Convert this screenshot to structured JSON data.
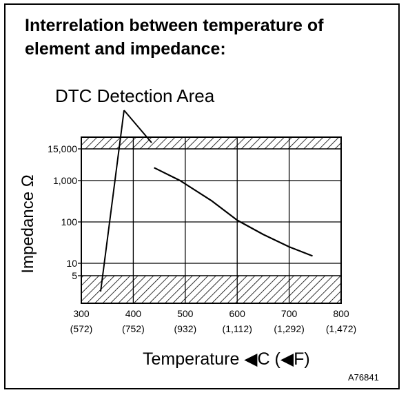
{
  "title_lines": [
    "Interrelation between temperature of",
    "element and impedance:"
  ],
  "annotation": "DTC Detection Area",
  "figure_id": "A76841",
  "chart_data": {
    "type": "line",
    "title": "Interrelation between temperature of element and impedance:",
    "xlabel": "Temperature ◀C (◀F)",
    "ylabel": "Impedance Ω",
    "x_scale": "linear",
    "y_scale": "log",
    "xlim": [
      300,
      800
    ],
    "x_ticks": [
      300,
      400,
      500,
      600,
      700,
      800
    ],
    "x_tick_labels_f": [
      "(572)",
      "(752)",
      "(932)",
      "(1,112)",
      "(1,292)",
      "(1,472)"
    ],
    "y_ticks": [
      5,
      10,
      100,
      1000,
      15000
    ],
    "y_tick_labels": [
      "5",
      "10",
      "100",
      "1,000",
      "15,000"
    ],
    "grid": true,
    "series": [
      {
        "x": [
          440,
          490,
          550,
          600,
          650,
          700,
          745
        ],
        "y": [
          3000,
          1000,
          330,
          110,
          50,
          25,
          15
        ]
      }
    ],
    "shaded_regions": [
      {
        "label": "DTC Detection Area",
        "y_from": 15000,
        "y_to": "top"
      },
      {
        "label": "DTC Detection Area",
        "y_from": "bottom",
        "y_to": 5
      }
    ]
  },
  "colors": {
    "line": "#000000",
    "background": "#ffffff"
  }
}
